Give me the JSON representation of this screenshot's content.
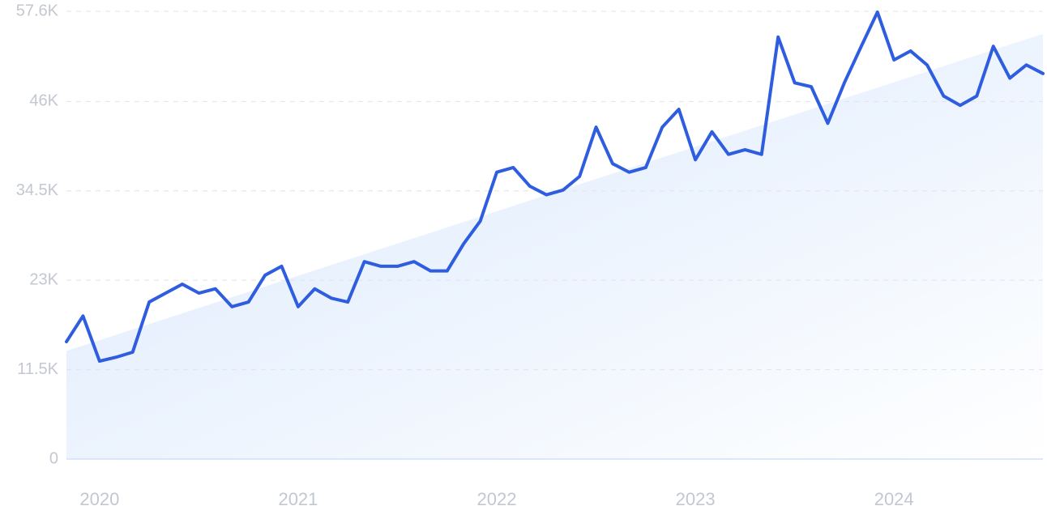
{
  "chart_data": {
    "type": "line",
    "categories": [
      null,
      null,
      "2020",
      null,
      null,
      null,
      null,
      null,
      null,
      null,
      null,
      null,
      null,
      null,
      "2021",
      null,
      null,
      null,
      null,
      null,
      null,
      null,
      null,
      null,
      null,
      null,
      "2022",
      null,
      null,
      null,
      null,
      null,
      null,
      null,
      null,
      null,
      null,
      null,
      "2023",
      null,
      null,
      null,
      null,
      null,
      null,
      null,
      null,
      null,
      null,
      null,
      "2024",
      null,
      null,
      null,
      null,
      null,
      null,
      null,
      null,
      null
    ],
    "series": [
      {
        "color": "#2f5de0",
        "values": [
          15100,
          18400,
          12600,
          13100,
          13750,
          20200,
          21350,
          22500,
          21350,
          21900,
          19600,
          20200,
          23650,
          24800,
          19600,
          21900,
          20700,
          20200,
          25400,
          24800,
          24800,
          25400,
          24200,
          24200,
          27700,
          30600,
          36900,
          37500,
          35100,
          34000,
          34600,
          36350,
          42700,
          38000,
          36900,
          37500,
          42700,
          45000,
          38500,
          42100,
          39200,
          39800,
          39200,
          54300,
          48400,
          47900,
          43200,
          48400,
          53000,
          57500,
          51350,
          52500,
          50700,
          46700,
          45500,
          46700,
          53100,
          49000,
          50700,
          49600
        ]
      }
    ],
    "trend": [
      13900,
      54700
    ],
    "ylim": [
      0,
      57600
    ],
    "yticks": [
      0,
      {
        "value": 11500,
        "label": "11.5K"
      },
      {
        "value": 23000,
        "label": "23K"
      },
      {
        "value": 34500,
        "label": "34.5K"
      },
      {
        "value": 46000,
        "label": "46K"
      },
      {
        "value": 57600,
        "label": "57.6K"
      }
    ],
    "grid": true
  }
}
